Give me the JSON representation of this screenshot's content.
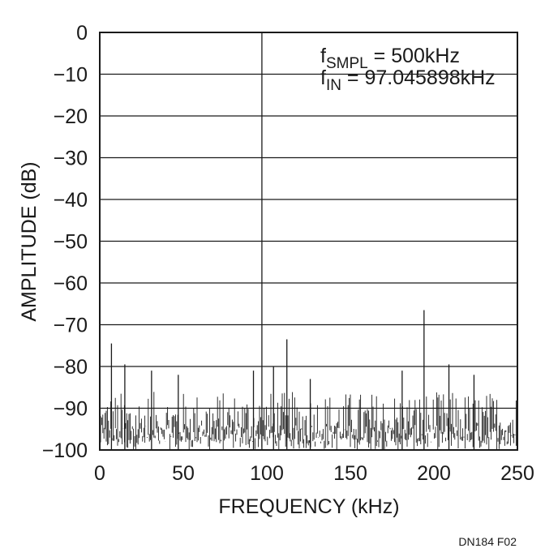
{
  "chart_data": {
    "type": "line",
    "title": "",
    "xlabel": "FREQUENCY (kHz)",
    "ylabel": "AMPLITUDE (dB)",
    "xlim": [
      0,
      250
    ],
    "ylim": [
      -100,
      0
    ],
    "x_ticks": [
      "0",
      "50",
      "100",
      "150",
      "200",
      "250"
    ],
    "y_ticks": [
      "0",
      "−10",
      "−20",
      "−30",
      "−40",
      "−50",
      "−60",
      "−70",
      "−80",
      "−90",
      "−100"
    ],
    "grid": true,
    "annotations": {
      "line1": {
        "prefix": "f",
        "sub": "SMPL",
        "suffix": " = 500kHz"
      },
      "line2": {
        "prefix": "f",
        "sub": "IN",
        "suffix": " = 97.045898kHz"
      }
    },
    "noise_floor_db": [
      -100,
      -86
    ],
    "series": [
      {
        "values": [
          {
            "x": 7,
            "y": -74.5
          },
          {
            "x": 15,
            "y": -79.5
          },
          {
            "x": 31,
            "y": -81
          },
          {
            "x": 47,
            "y": -82
          },
          {
            "x": 92,
            "y": -81
          },
          {
            "x": 97.05,
            "y": 0
          },
          {
            "x": 104,
            "y": -80
          },
          {
            "x": 112,
            "y": -73.5
          },
          {
            "x": 126,
            "y": -83
          },
          {
            "x": 181,
            "y": -81
          },
          {
            "x": 194.1,
            "y": -66.5
          },
          {
            "x": 209,
            "y": -79.5
          },
          {
            "x": 224,
            "y": -82
          }
        ]
      }
    ]
  },
  "figure_id": "DN184 F02"
}
